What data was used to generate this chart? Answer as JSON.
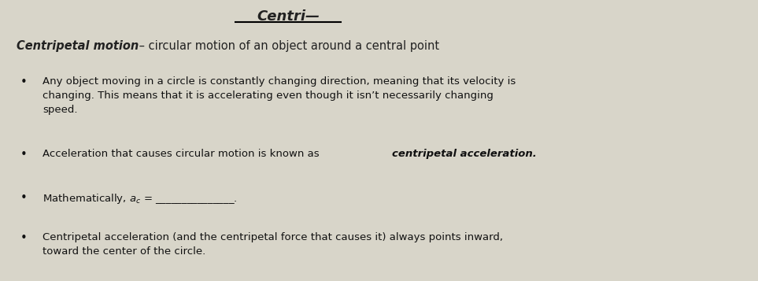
{
  "bg_color": "#d8d5c9",
  "title_top": "Centri—",
  "header_bold_italic": "Centripetal motion",
  "header_rest": " – circular motion of an object around a central point",
  "bullet1_text": "Any object moving in a circle is constantly changing direction, meaning that its velocity is\nchanging. This means that it is accelerating even though it isn’t necessarily changing\nspeed.",
  "bullet2_normal": "Acceleration that causes circular motion is known as ",
  "bullet2_bold": "centripetal acceleration.",
  "bullet3_text": "Mathematically, $a_c$ = _______________.",
  "bullet4_text": "Centripetal acceleration (and the centripetal force that causes it) always points inward,\ntoward the center of the circle.",
  "title_color": "#222222",
  "text_color": "#111111",
  "figsize": [
    9.63,
    3.57
  ],
  "dpi": 100
}
